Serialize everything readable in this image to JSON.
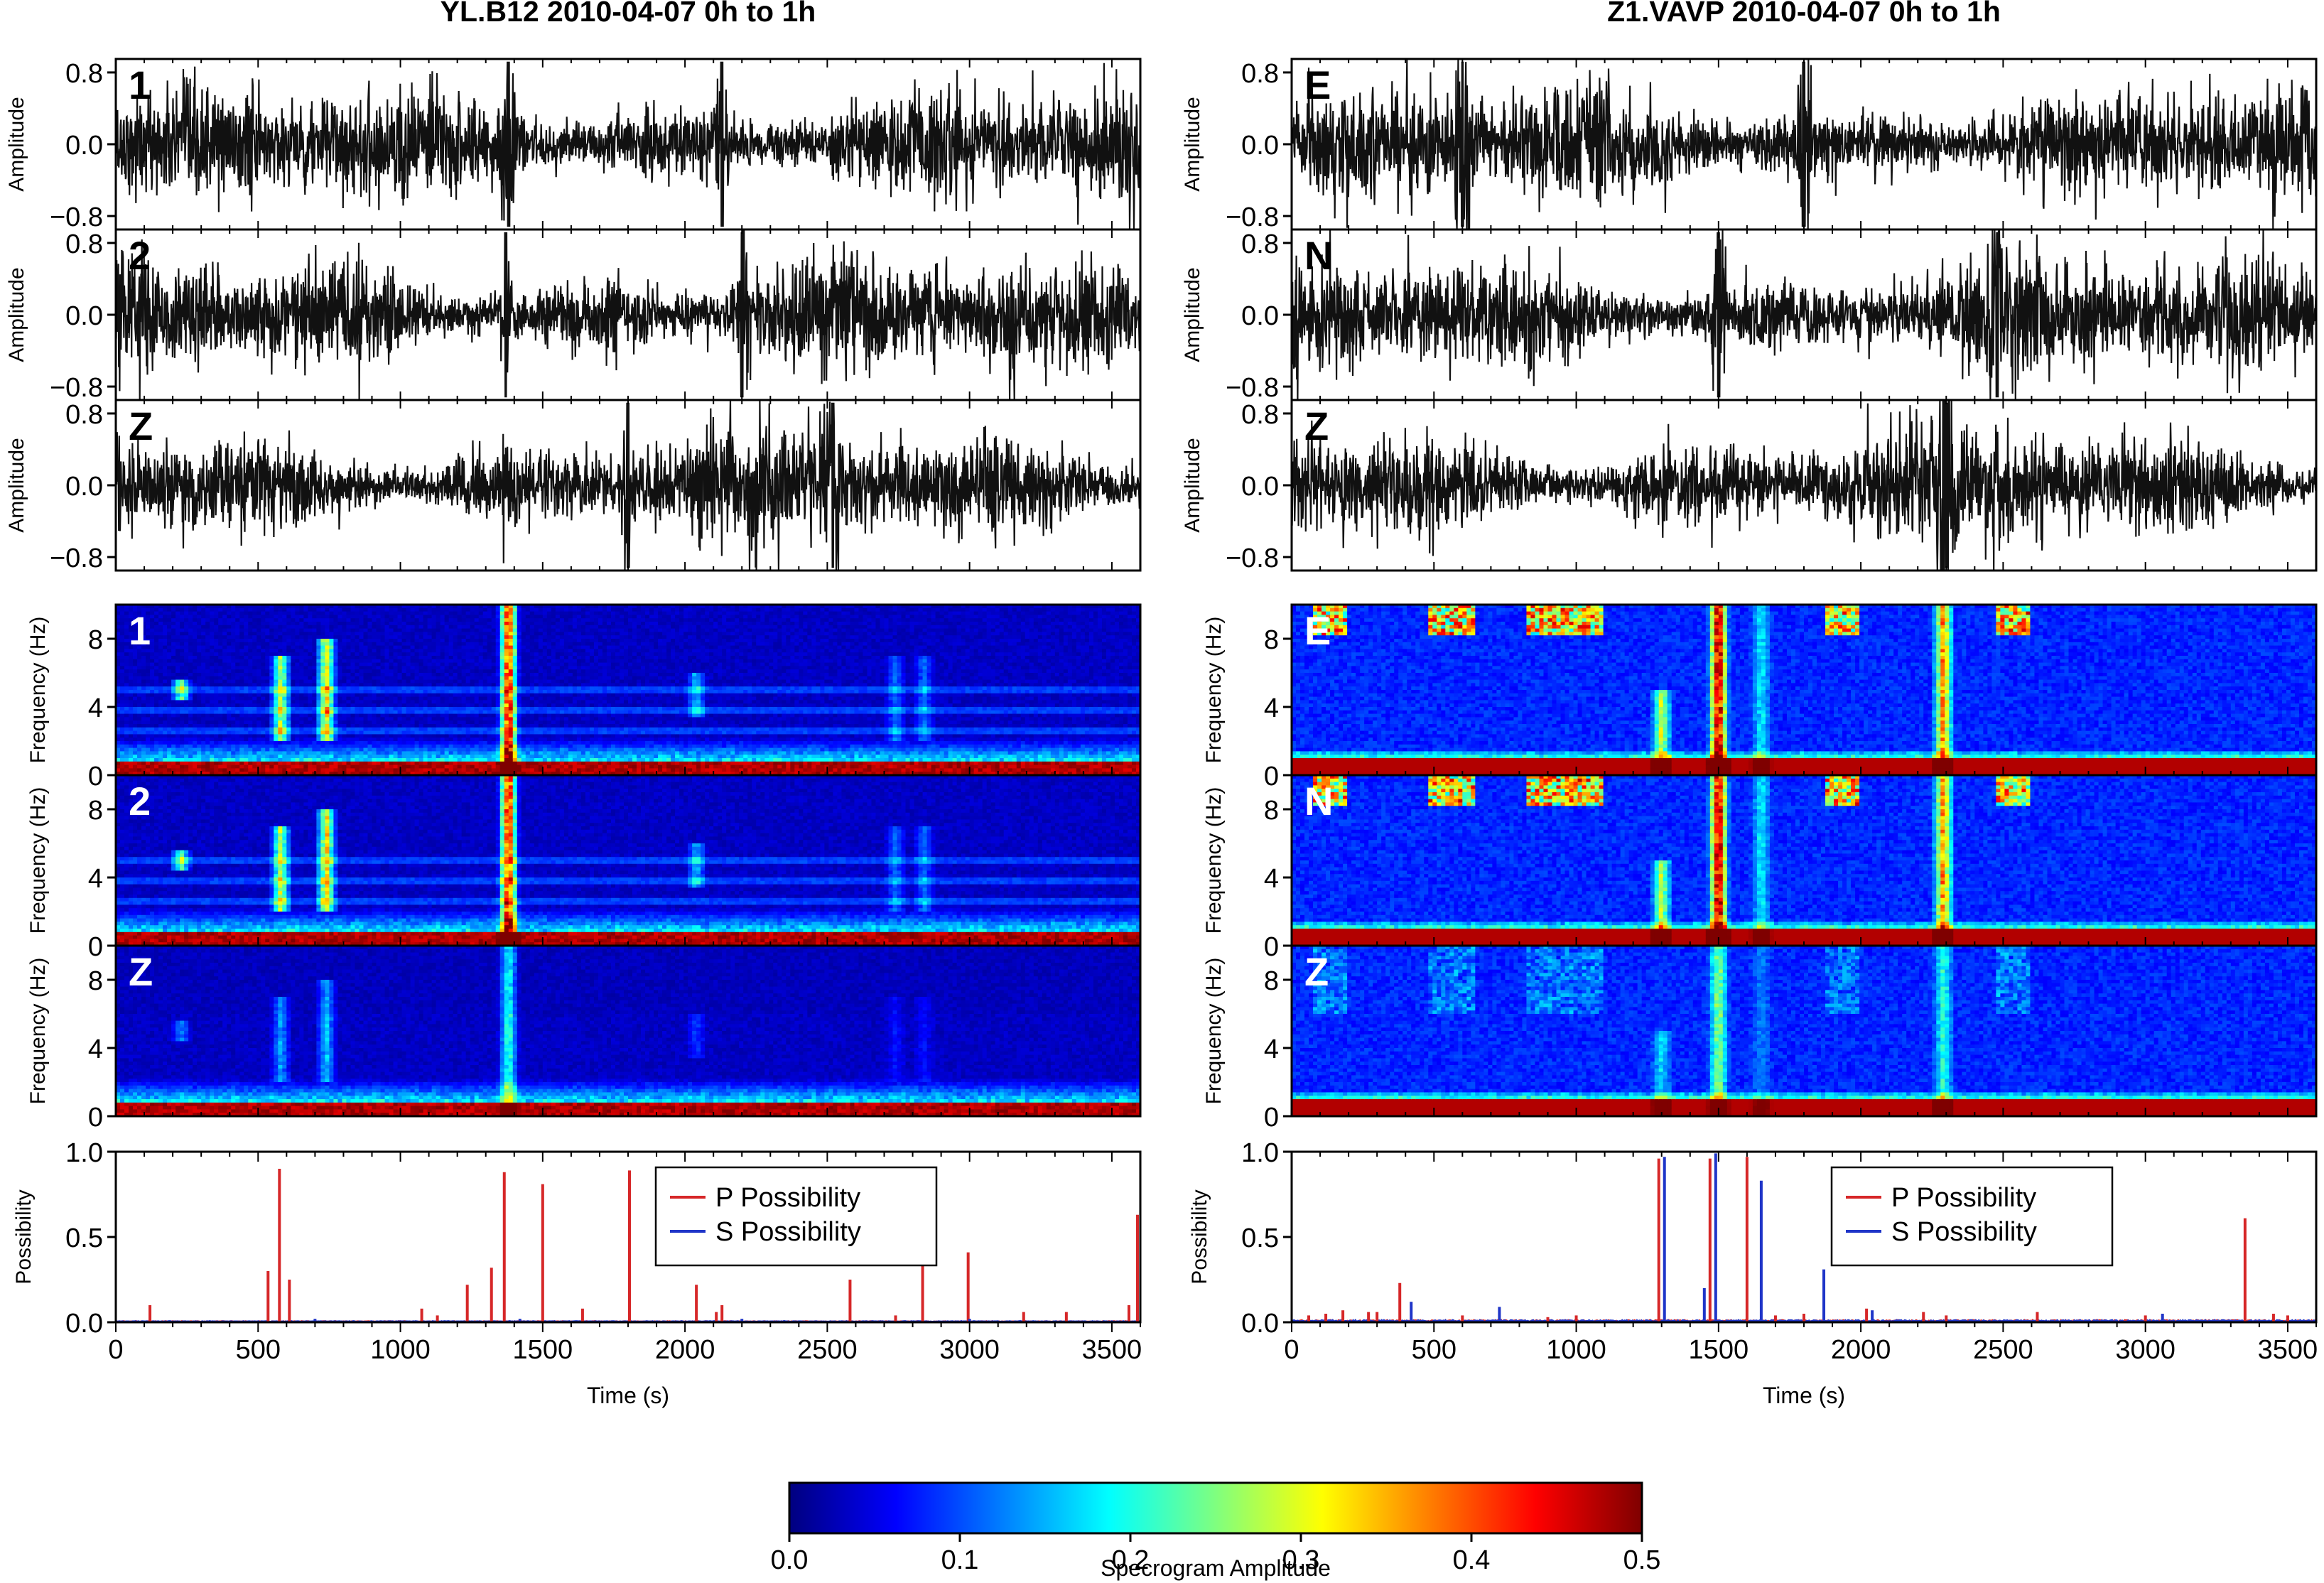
{
  "chart_data": [
    {
      "id": "left",
      "type": "line",
      "title": "YL.B12 2010-04-07 0h to 1h",
      "waveforms": {
        "ylabel": "Amplitude",
        "yticks": [
          "0.8",
          "0.0",
          "−0.8"
        ],
        "ytick_values": [
          0.8,
          0.0,
          -0.8
        ],
        "ylim": [
          -0.95,
          0.95
        ],
        "xlim": [
          0,
          3600
        ],
        "channels": [
          "1",
          "2",
          "Z"
        ],
        "spike_times": [
          [
            1380,
            2130
          ],
          [
            1370,
            2200
          ],
          [
            2520,
            1800
          ]
        ]
      },
      "spectrograms": {
        "type": "heatmap",
        "ylabel": "Frequency (Hz)",
        "yticks": [
          "0",
          "4",
          "8"
        ],
        "ytick_values": [
          0,
          4,
          8
        ],
        "ylim": [
          0,
          10
        ],
        "xlim": [
          0,
          3600
        ],
        "channels": [
          "1",
          "2",
          "Z"
        ],
        "events": [
          {
            "t": 1380,
            "fmin": 0,
            "fmax": 10,
            "strength": 1.0
          },
          {
            "t": 580,
            "fmin": 2,
            "fmax": 7,
            "strength": 0.6
          },
          {
            "t": 740,
            "fmin": 2,
            "fmax": 8,
            "strength": 0.7
          },
          {
            "t": 230,
            "fmin": 4.5,
            "fmax": 5.6,
            "strength": 0.5
          },
          {
            "t": 2040,
            "fmin": 3.5,
            "fmax": 6,
            "strength": 0.3
          },
          {
            "t": 2740,
            "fmin": 2,
            "fmax": 7,
            "strength": 0.2
          },
          {
            "t": 2840,
            "fmin": 2,
            "fmax": 7,
            "strength": 0.2
          }
        ],
        "bands_hz": [
          5.0,
          3.8,
          2.6
        ]
      },
      "possibility": {
        "ylabel": "Possibility",
        "xlabel": "Time (s)",
        "ylim": [
          0,
          1
        ],
        "yticks": [
          "0.0",
          "0.5",
          "1.0"
        ],
        "ytick_values": [
          0,
          0.5,
          1.0
        ],
        "xlim": [
          0,
          3600
        ],
        "xticks": [
          "0",
          "500",
          "1000",
          "1500",
          "2000",
          "2500",
          "3000",
          "3500"
        ],
        "xtick_values": [
          0,
          500,
          1000,
          1500,
          2000,
          2500,
          3000,
          3500
        ],
        "legend": [
          "P Possibility",
          "S Possibility"
        ],
        "legend_position": "top-right",
        "series": [
          {
            "name": "P Possibility",
            "color": "#d62728",
            "points": [
              [
                120,
                0.1
              ],
              [
                535,
                0.3
              ],
              [
                575,
                0.9
              ],
              [
                610,
                0.25
              ],
              [
                1075,
                0.08
              ],
              [
                1130,
                0.04
              ],
              [
                1235,
                0.22
              ],
              [
                1320,
                0.32
              ],
              [
                1365,
                0.88
              ],
              [
                1500,
                0.81
              ],
              [
                1640,
                0.08
              ],
              [
                1805,
                0.89
              ],
              [
                2040,
                0.22
              ],
              [
                2110,
                0.06
              ],
              [
                2130,
                0.1
              ],
              [
                2580,
                0.25
              ],
              [
                2740,
                0.04
              ],
              [
                2835,
                0.44
              ],
              [
                2995,
                0.41
              ],
              [
                3190,
                0.06
              ],
              [
                3340,
                0.06
              ],
              [
                3560,
                0.1
              ],
              [
                3590,
                0.63
              ]
            ]
          },
          {
            "name": "S Possibility",
            "color": "#1f35c8",
            "points": [
              [
                700,
                0.02
              ],
              [
                1420,
                0.02
              ],
              [
                2200,
                0.02
              ],
              [
                3000,
                0.02
              ]
            ]
          }
        ]
      }
    },
    {
      "id": "right",
      "type": "line",
      "title": "Z1.VAVP 2010-04-07 0h to 1h",
      "waveforms": {
        "ylabel": "Amplitude",
        "yticks": [
          "0.8",
          "0.0",
          "−0.8"
        ],
        "ytick_values": [
          0.8,
          0.0,
          -0.8
        ],
        "ylim": [
          -0.95,
          0.95
        ],
        "xlim": [
          0,
          3600
        ],
        "channels": [
          "E",
          "N",
          "Z"
        ],
        "spike_times": [
          [
            1800,
            600
          ],
          [
            2480,
            1500
          ],
          [
            2290,
            2300
          ]
        ]
      },
      "spectrograms": {
        "type": "heatmap",
        "ylabel": "Frequency (Hz)",
        "yticks": [
          "0",
          "4",
          "8"
        ],
        "ytick_values": [
          0,
          4,
          8
        ],
        "ylim": [
          0,
          10
        ],
        "xlim": [
          0,
          3600
        ],
        "channels": [
          "E",
          "N",
          "Z"
        ],
        "events": [
          {
            "t": 1500,
            "fmin": 0,
            "fmax": 10,
            "strength": 1.0
          },
          {
            "t": 1300,
            "fmin": 0,
            "fmax": 5,
            "strength": 0.5
          },
          {
            "t": 2290,
            "fmin": 0,
            "fmax": 10,
            "strength": 0.7
          },
          {
            "t": 1650,
            "fmin": 0,
            "fmax": 10,
            "strength": 0.25
          }
        ],
        "top_bursts": [
          [
            480,
            640
          ],
          [
            820,
            1100
          ],
          [
            1870,
            2000
          ],
          [
            2480,
            2600
          ],
          [
            80,
            200
          ]
        ],
        "bands_hz": []
      },
      "possibility": {
        "ylabel": "Possibility",
        "xlabel": "Time (s)",
        "ylim": [
          0,
          1
        ],
        "yticks": [
          "0.0",
          "0.5",
          "1.0"
        ],
        "ytick_values": [
          0,
          0.5,
          1.0
        ],
        "xlim": [
          0,
          3600
        ],
        "xticks": [
          "0",
          "500",
          "1000",
          "1500",
          "2000",
          "2500",
          "3000",
          "3500"
        ],
        "xtick_values": [
          0,
          500,
          1000,
          1500,
          2000,
          2500,
          3000,
          3500
        ],
        "legend": [
          "P Possibility",
          "S Possibility"
        ],
        "legend_position": "top-right",
        "series": [
          {
            "name": "P Possibility",
            "color": "#d62728",
            "points": [
              [
                60,
                0.04
              ],
              [
                120,
                0.05
              ],
              [
                180,
                0.07
              ],
              [
                270,
                0.06
              ],
              [
                300,
                0.06
              ],
              [
                380,
                0.23
              ],
              [
                600,
                0.04
              ],
              [
                900,
                0.03
              ],
              [
                1000,
                0.04
              ],
              [
                1290,
                0.96
              ],
              [
                1470,
                0.96
              ],
              [
                1600,
                0.97
              ],
              [
                1700,
                0.04
              ],
              [
                1800,
                0.05
              ],
              [
                2020,
                0.08
              ],
              [
                2220,
                0.06
              ],
              [
                2300,
                0.04
              ],
              [
                2620,
                0.06
              ],
              [
                3000,
                0.04
              ],
              [
                3350,
                0.61
              ],
              [
                3450,
                0.05
              ],
              [
                3500,
                0.04
              ]
            ]
          },
          {
            "name": "S Possibility",
            "color": "#1f35c8",
            "points": [
              [
                420,
                0.12
              ],
              [
                730,
                0.09
              ],
              [
                1310,
                0.97
              ],
              [
                1450,
                0.2
              ],
              [
                1490,
                0.99
              ],
              [
                1650,
                0.83
              ],
              [
                1870,
                0.31
              ],
              [
                2040,
                0.07
              ],
              [
                3060,
                0.05
              ]
            ]
          }
        ]
      }
    }
  ],
  "colorbar": {
    "label": "Specrogram Amplitude",
    "range": [
      0.0,
      0.5
    ],
    "ticks": [
      "0.0",
      "0.1",
      "0.2",
      "0.3",
      "0.4",
      "0.5"
    ],
    "tick_values": [
      0.0,
      0.1,
      0.2,
      0.3,
      0.4,
      0.5
    ],
    "colormap": [
      "#00007f",
      "#0000ff",
      "#007fff",
      "#00ffff",
      "#7fff7f",
      "#ffff00",
      "#ff7f00",
      "#ff0000",
      "#7f0000"
    ]
  }
}
